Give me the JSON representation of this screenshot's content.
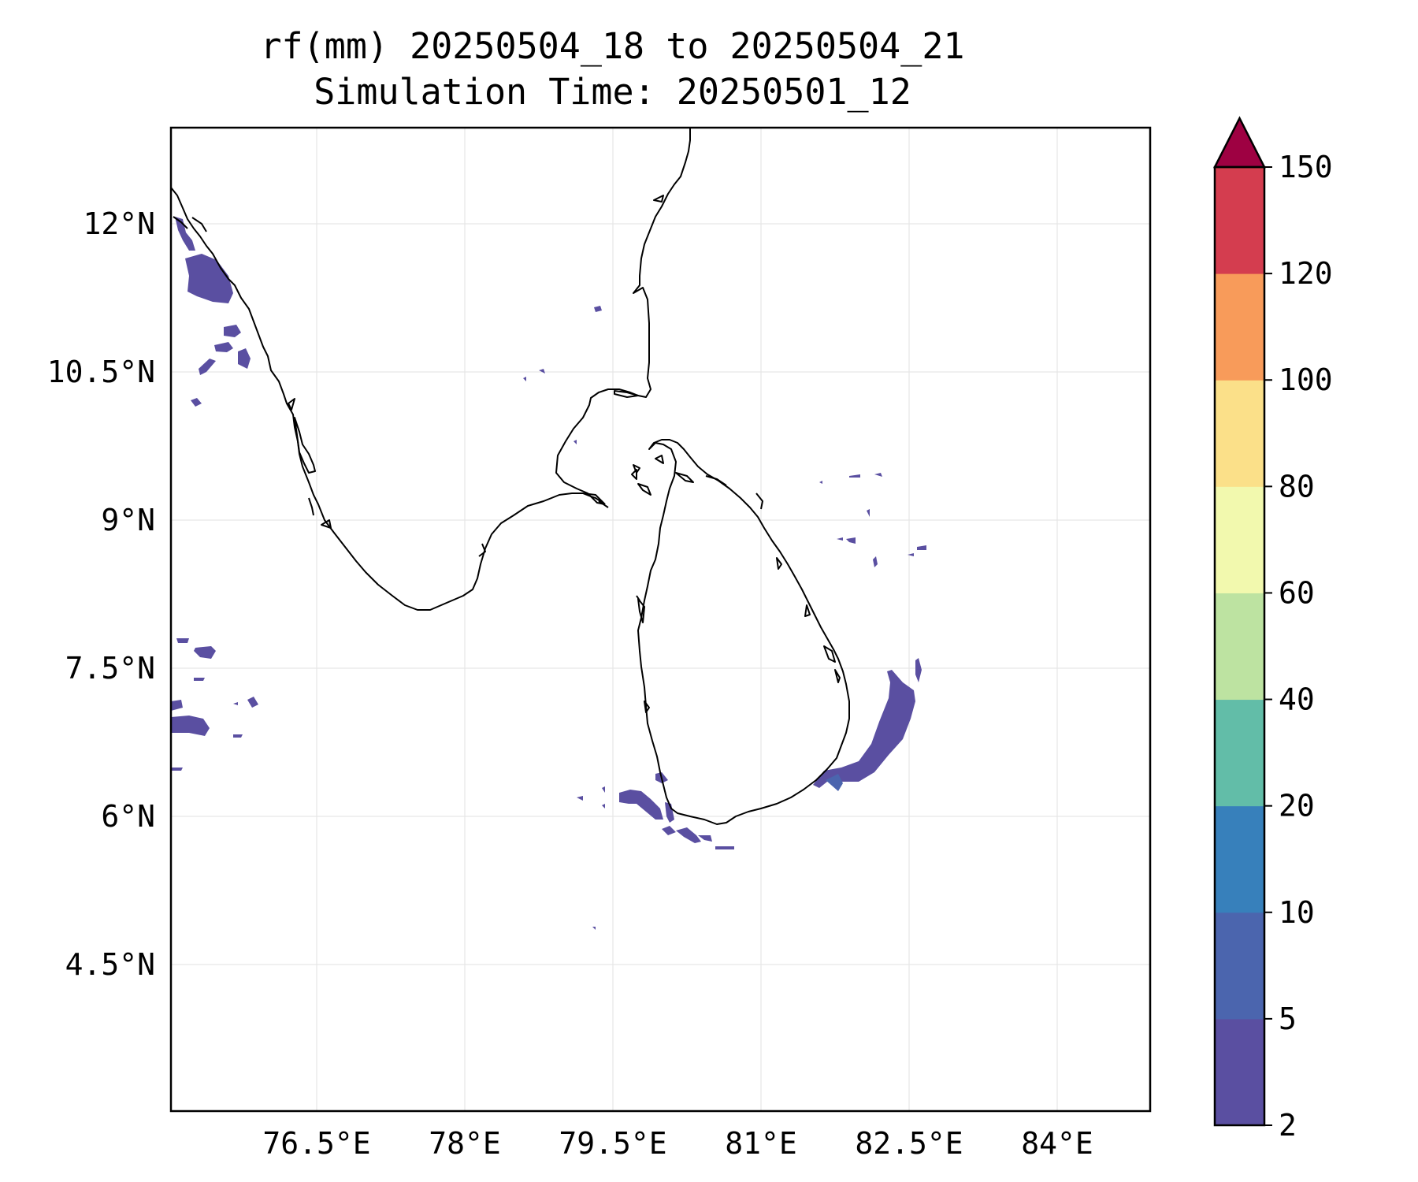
{
  "title": {
    "line1": "rf(mm) 20250504_18 to 20250504_21",
    "line2": "Simulation Time: 20250501_12"
  },
  "axes": {
    "lon_ticks": [
      "76.5°E",
      "78°E",
      "79.5°E",
      "81°E",
      "82.5°E",
      "84°E"
    ],
    "lat_ticks": [
      "12°N",
      "10.5°N",
      "9°N",
      "7.5°N",
      "6°N",
      "4.5°N"
    ]
  },
  "colorbar": {
    "levels": [
      "2",
      "5",
      "10",
      "20",
      "40",
      "60",
      "80",
      "100",
      "120",
      "150"
    ],
    "colors": [
      "#5a4fa1",
      "#4b65ae",
      "#3780bb",
      "#62bda8",
      "#bde3a1",
      "#f2f9ae",
      "#fbe089",
      "#f89b5a",
      "#d43d4f",
      "#9e0142"
    ],
    "extend": "max"
  },
  "map": {
    "lon_range": [
      75.05,
      84.95
    ],
    "lat_range": [
      3.15,
      13.1
    ],
    "features": [
      "coastline",
      "rainfall contours",
      "gridlines"
    ]
  }
}
